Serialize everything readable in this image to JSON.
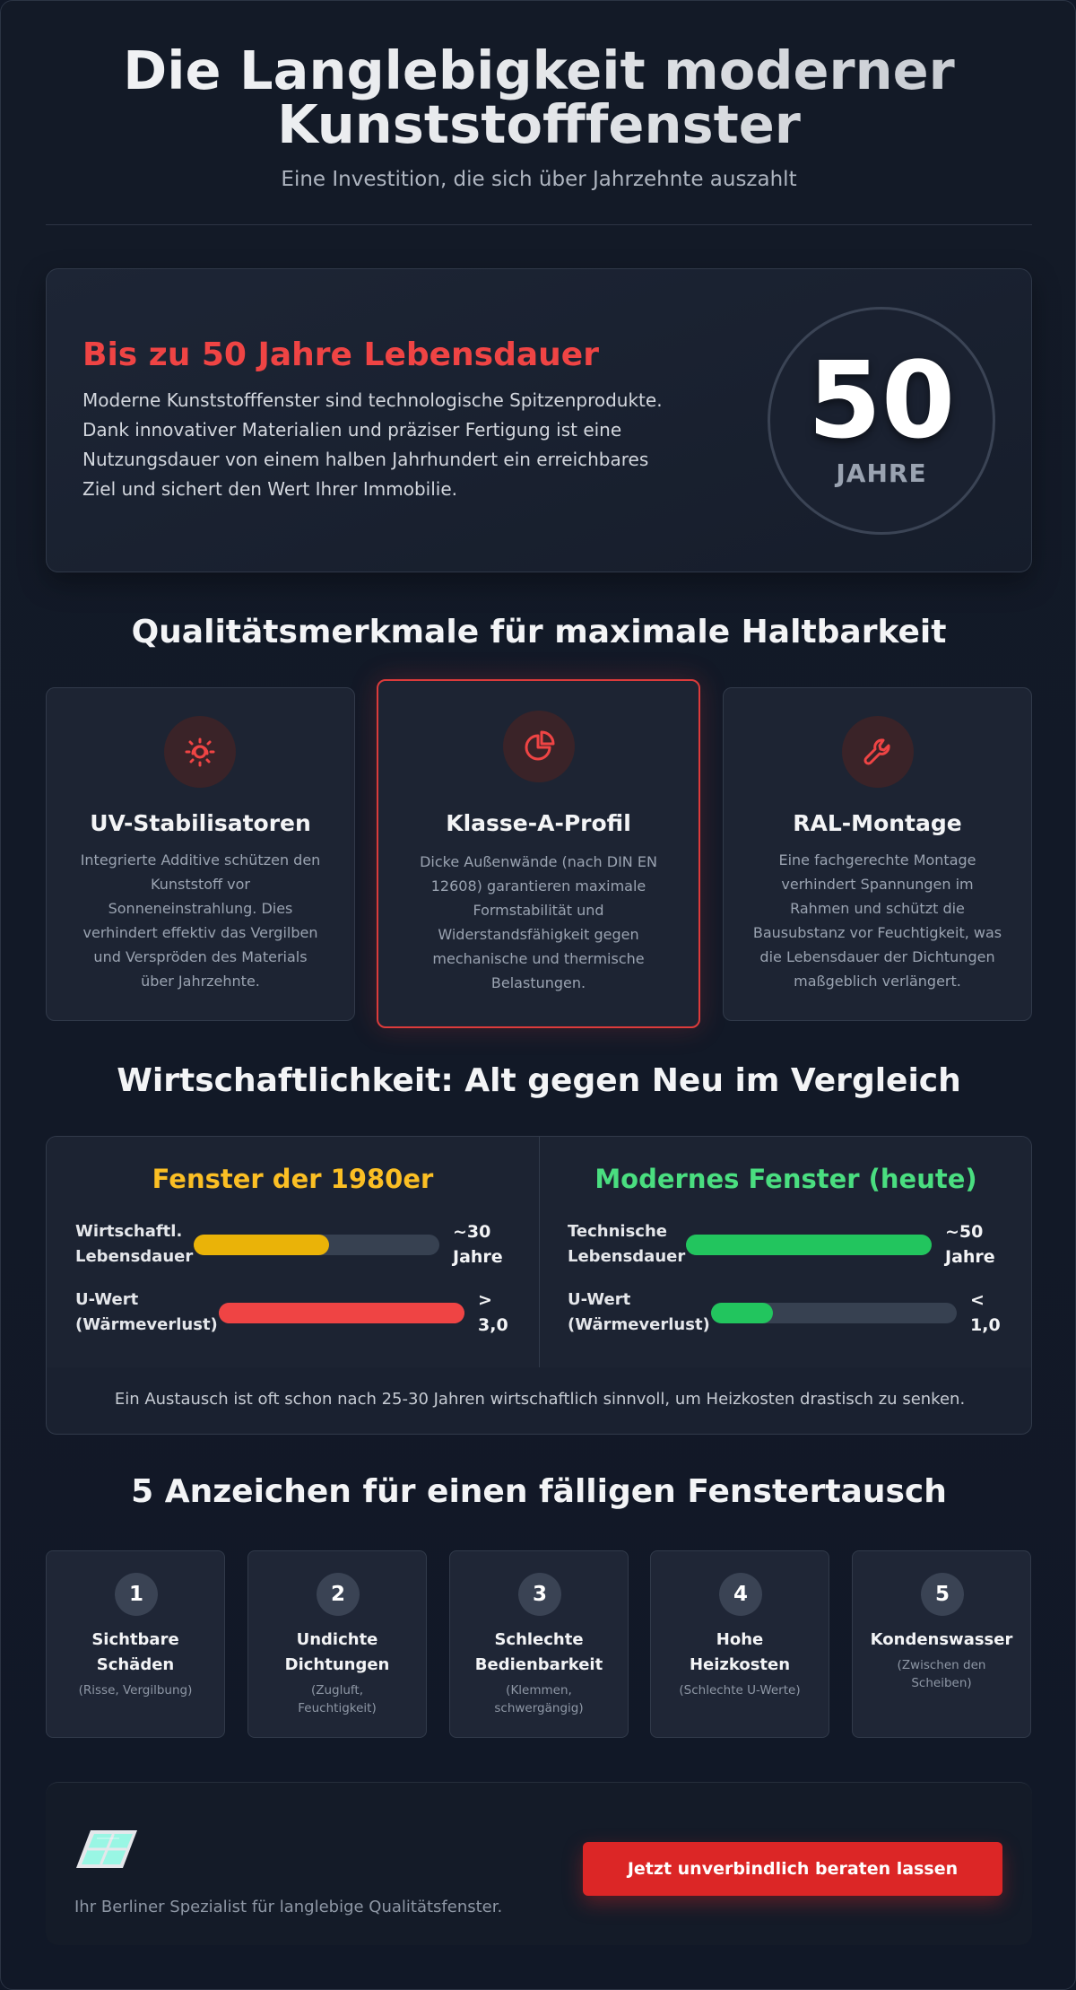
{
  "header": {
    "title_line1": "Die Langlebigkeit moderner",
    "title_line2": "Kunststofffenster",
    "subtitle": "Eine Investition, die sich über Jahrzehnte auszahlt"
  },
  "hero": {
    "title": "Bis zu 50 Jahre Lebensdauer",
    "text": "Moderne Kunststofffenster sind technologische Spitzenprodukte. Dank innovativer Materialien und präziser Fertigung ist eine Nutzungsdauer von einem halben Jahrhundert ein erreichbares Ziel und sichert den Wert Ihrer Immobilie.",
    "circle_number": "50",
    "circle_unit": "JAHRE"
  },
  "features": {
    "title": "Qualitätsmerkmale für maximale Haltbarkeit",
    "cards": [
      {
        "icon": "sun-icon",
        "title": "UV-Stabilisatoren",
        "text": "Integrierte Additive schützen den Kunststoff vor Sonneneinstrahlung. Dies verhindert effektiv das Vergilben und Verspröden des Materials über Jahrzehnte."
      },
      {
        "icon": "pie-chart-icon",
        "title": "Klasse-A-Profil",
        "text": "Dicke Außenwände (nach DIN EN 12608) garantieren maximale Formstabilität und Widerstandsfähigkeit gegen mechanische und thermische Belastungen."
      },
      {
        "icon": "wrench-icon",
        "title": "RAL-Montage",
        "text": "Eine fachgerechte Montage verhindert Spannungen im Rahmen und schützt die Bausubstanz vor Feuchtigkeit, was die Lebensdauer der Dichtungen maßgeblich verlängert."
      }
    ]
  },
  "comparison": {
    "title": "Wirtschaftlichkeit: Alt gegen Neu im Vergleich",
    "old": {
      "title": "Fenster der 1980er",
      "color": "#fbbf24",
      "metrics": [
        {
          "label_1": "Wirtschaftl.",
          "label_2": "Lebensdauer",
          "value_1": "~30",
          "value_2": "Jahre",
          "fill": 0.55,
          "color": "#eab308"
        },
        {
          "label_1": "U-Wert",
          "label_2": "(Wärmeverlust)",
          "value_1": ">",
          "value_2": "3,0",
          "fill": 1.0,
          "color": "#ef4444"
        }
      ]
    },
    "new": {
      "title": "Modernes Fenster (heute)",
      "color": "#4ade80",
      "metrics": [
        {
          "label_1": "Technische",
          "label_2": "Lebensdauer",
          "value_1": "~50",
          "value_2": "Jahre",
          "fill": 1.0,
          "color": "#22c55e"
        },
        {
          "label_1": "U-Wert",
          "label_2": "(Wärmeverlust)",
          "value_1": "<",
          "value_2": "1,0",
          "fill": 0.25,
          "color": "#22c55e"
        }
      ]
    },
    "note": "Ein Austausch ist oft schon nach 25-30 Jahren wirtschaftlich sinnvoll, um Heizkosten drastisch zu senken."
  },
  "signs": {
    "title": "5 Anzeichen für einen fälligen Fenstertausch",
    "items": [
      {
        "num": "1",
        "title_1": "Sichtbare",
        "title_2": "Schäden",
        "sub_1": "(Risse, Vergilbung)",
        "sub_2": ""
      },
      {
        "num": "2",
        "title_1": "Undichte",
        "title_2": "Dichtungen",
        "sub_1": "(Zugluft,",
        "sub_2": "Feuchtigkeit)"
      },
      {
        "num": "3",
        "title_1": "Schlechte",
        "title_2": "Bedienbarkeit",
        "sub_1": "(Klemmen,",
        "sub_2": "schwergängig)"
      },
      {
        "num": "4",
        "title_1": "Hohe",
        "title_2": "Heizkosten",
        "sub_1": "(Schlechte U-Werte)",
        "sub_2": ""
      },
      {
        "num": "5",
        "title_1": "Kondenswasser",
        "title_2": "",
        "sub_1": "(Zwischen den",
        "sub_2": "Scheiben)"
      }
    ]
  },
  "footer": {
    "logo_icon": "window-icon",
    "text": "Ihr Berliner Spezialist für langlebige Qualitätsfenster.",
    "cta": "Jetzt unverbindlich beraten lassen"
  }
}
